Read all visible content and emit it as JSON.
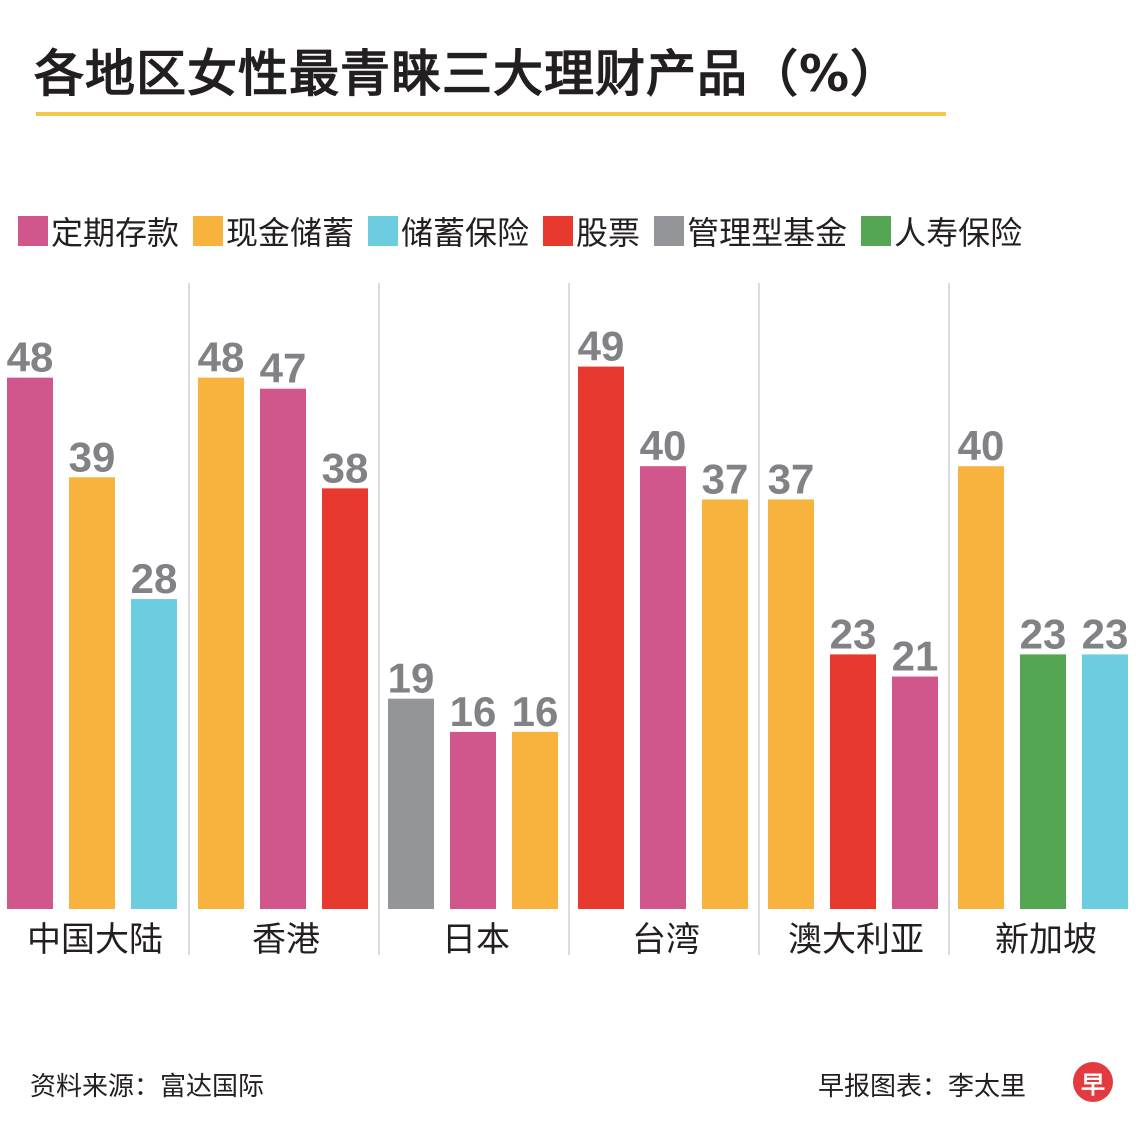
{
  "title": "各地区女性最青睐三大理财产品（%）",
  "legend": [
    {
      "key": "deposit",
      "label": "定期存款",
      "color": "#d0568b"
    },
    {
      "key": "cash",
      "label": "现金储蓄",
      "color": "#f8b33f"
    },
    {
      "key": "insurance_savings",
      "label": "储蓄保险",
      "color": "#6dcde0"
    },
    {
      "key": "stocks",
      "label": "股票",
      "color": "#e8392f"
    },
    {
      "key": "managed_funds",
      "label": "管理型基金",
      "color": "#939598"
    },
    {
      "key": "life_insurance",
      "label": "人寿保险",
      "color": "#55a653"
    }
  ],
  "chart_data": {
    "type": "bar",
    "title": "各地区女性最青睐三大理财产品（%）",
    "ylim": [
      0,
      50
    ],
    "value_label_color": "#808285",
    "groups": [
      {
        "region": "中国大陆",
        "bars": [
          {
            "product": "定期存款",
            "value": 48
          },
          {
            "product": "现金储蓄",
            "value": 39
          },
          {
            "product": "储蓄保险",
            "value": 28
          }
        ]
      },
      {
        "region": "香港",
        "bars": [
          {
            "product": "现金储蓄",
            "value": 48
          },
          {
            "product": "定期存款",
            "value": 47
          },
          {
            "product": "股票",
            "value": 38
          }
        ]
      },
      {
        "region": "日本",
        "bars": [
          {
            "product": "管理型基金",
            "value": 19
          },
          {
            "product": "定期存款",
            "value": 16
          },
          {
            "product": "现金储蓄",
            "value": 16
          }
        ]
      },
      {
        "region": "台湾",
        "bars": [
          {
            "product": "股票",
            "value": 49
          },
          {
            "product": "定期存款",
            "value": 40
          },
          {
            "product": "现金储蓄",
            "value": 37
          }
        ]
      },
      {
        "region": "澳大利亚",
        "bars": [
          {
            "product": "现金储蓄",
            "value": 37
          },
          {
            "product": "股票",
            "value": 23
          },
          {
            "product": "定期存款",
            "value": 21
          }
        ]
      },
      {
        "region": "新加坡",
        "bars": [
          {
            "product": "现金储蓄",
            "value": 40
          },
          {
            "product": "人寿保险",
            "value": 23
          },
          {
            "product": "储蓄保险",
            "value": 23
          }
        ]
      }
    ]
  },
  "footer": {
    "source": "资料来源：富达国际",
    "credit": "早报图表：李太里",
    "logo_char": "早"
  }
}
